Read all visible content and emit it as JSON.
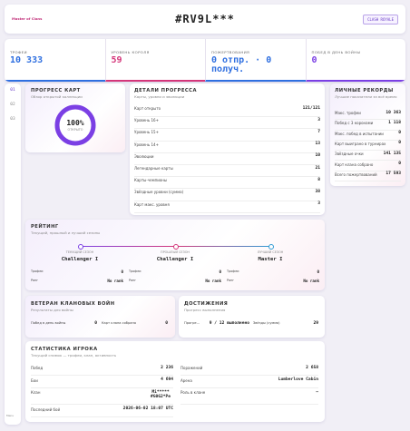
{
  "header": {
    "logo": "Master of Clans",
    "title": "#RV9L***",
    "button": "CLASH ROYALE"
  },
  "stats": [
    {
      "label": "ТРОФЕИ",
      "value": "10 333",
      "color": "#2f6fe0"
    },
    {
      "label": "УРОВЕНЬ КОРОЛЯ",
      "value": "59",
      "color": "#d4367a"
    },
    {
      "label": "ПОЖЕРТВОВАНИЯ",
      "value": "0 отпр. · 0 получ.",
      "color": "#2f6fe0"
    },
    {
      "label": "ПОБЕД В ДЕНЬ ВОЙНЫ",
      "value": "0",
      "color": "#7b3fe4"
    }
  ],
  "nav": [
    "01",
    "02",
    "03"
  ],
  "footer": "Menu",
  "progress": {
    "title": "ПРОГРЕСС КАРТ",
    "subtitle": "Обзор открытой коллекции",
    "percent": "100%",
    "caption": "ОТКРЫТО"
  },
  "details": {
    "title": "ДЕТАЛИ ПРОГРЕССА",
    "subtitle": "Карты, уровни и эволюции",
    "rows": [
      [
        "Карт открыто",
        "121/121"
      ],
      [
        "Уровень 16+",
        "3"
      ],
      [
        "Уровень 15+",
        "7"
      ],
      [
        "Уровень 14+",
        "13"
      ],
      [
        "Эволюции",
        "10"
      ],
      [
        "Легендарные карты",
        "21"
      ],
      [
        "Карты-чемпионы",
        "8"
      ],
      [
        "Звёздные уровни (сумма)",
        "38"
      ],
      [
        "Карт макс. уровня",
        "3"
      ]
    ]
  },
  "records": {
    "title": "ЛИЧНЫЕ РЕКОРДЫ",
    "subtitle": "Лучшие показатели за всё время",
    "rows": [
      [
        "Макс. трофеи",
        "10 363"
      ],
      [
        "Побед с 3 коронами",
        "1 118"
      ],
      [
        "Макс. побед в испытании",
        "0"
      ],
      [
        "Карт выиграно в турнирах",
        "0"
      ],
      [
        "Звёздные очки",
        "141 135"
      ],
      [
        "Карт клана собрано",
        "0"
      ],
      [
        "Всего пожертвований",
        "17 593"
      ]
    ]
  },
  "rating": {
    "title": "РЕЙТИНГ",
    "subtitle": "Текущий, прошлый и лучший сезоны",
    "seasons": [
      {
        "label": "ТЕКУЩИЙ СЕЗОН",
        "league": "Challenger I",
        "rows": [
          [
            "Трофеи",
            "0"
          ],
          [
            "Ранг",
            "No rank"
          ]
        ]
      },
      {
        "label": "ПРОШЛЫЙ СЕЗОН",
        "league": "Challenger I",
        "rows": [
          [
            "Трофеи",
            "0"
          ],
          [
            "Ранг",
            "No rank"
          ]
        ]
      },
      {
        "label": "ЛУЧШИЙ СЕЗОН",
        "league": "Master I",
        "rows": [
          [
            "Трофеи",
            "0"
          ],
          [
            "Ранг",
            "No rank"
          ]
        ]
      }
    ]
  },
  "veteran": {
    "title": "ВЕТЕРАН КЛАНОВЫХ ВОЙН",
    "subtitle": "Результаты для войны",
    "rows": [
      [
        "Побед в день войны",
        "0"
      ],
      [
        "Карт клана собрано",
        "0"
      ]
    ]
  },
  "achievements": {
    "title": "ДОСТИЖЕНИЯ",
    "subtitle": "Прогресс выполнения",
    "rows": [
      [
        "Прогре...",
        "9 / 12 выполнено"
      ],
      [
        "Звёзды (сумма)",
        "29"
      ]
    ]
  },
  "player_stats": {
    "title": "СТАТИСТИКА ИГРОКА",
    "subtitle": "Текущий снимок — трофеи, клан, активность",
    "left": [
      [
        "Побед",
        "2 236"
      ],
      [
        "Бои",
        "4 694"
      ],
      [
        "Клан",
        "Mi***** #G0G2*Pe"
      ],
      [
        "Последний бой",
        "2026-06-02 18:07 UTC"
      ]
    ],
    "right": [
      [
        "Поражений",
        "2 658"
      ],
      [
        "Арена",
        "Lumberlove Cabin"
      ],
      [
        "Роль в клане",
        "—"
      ]
    ]
  }
}
